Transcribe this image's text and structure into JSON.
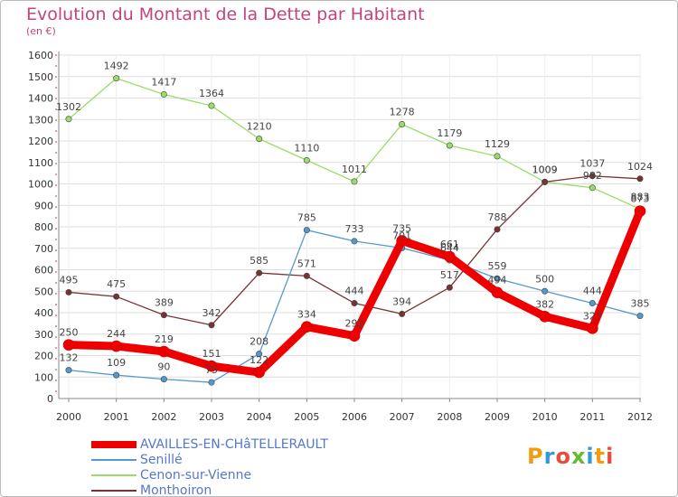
{
  "chart_data": {
    "type": "line",
    "title": "Evolution du Montant de la Dette par Habitant",
    "unit_label": "(en €)",
    "x": [
      2000,
      2001,
      2002,
      2003,
      2004,
      2005,
      2006,
      2007,
      2008,
      2009,
      2010,
      2011,
      2012
    ],
    "ylim": [
      0,
      1600
    ],
    "yticks": [
      0,
      100,
      200,
      300,
      400,
      500,
      600,
      700,
      800,
      900,
      1000,
      1100,
      1200,
      1300,
      1400,
      1500,
      1600
    ],
    "grid": true,
    "legend_position": "bottom-left",
    "series": [
      {
        "name": "AVAILLES-EN-CHâTELLERAULT",
        "color": "#ee0000",
        "values": [
          250,
          244,
          219,
          151,
          122,
          334,
          292,
          735,
          661,
          494,
          382,
          327,
          873
        ]
      },
      {
        "name": "Senillé",
        "color": "#5599cc",
        "values": [
          132,
          109,
          90,
          75,
          208,
          785,
          733,
          701,
          644,
          559,
          500,
          444,
          385
        ]
      },
      {
        "name": "Cenon-sur-Vienne",
        "color": "#99dd66",
        "values": [
          1302,
          1492,
          1417,
          1364,
          1210,
          1110,
          1011,
          1278,
          1179,
          1129,
          1009,
          982,
          883
        ]
      },
      {
        "name": "Monthoiron",
        "color": "#773333",
        "values": [
          495,
          475,
          389,
          342,
          585,
          571,
          444,
          394,
          517,
          788,
          1009,
          1037,
          1024
        ]
      }
    ]
  },
  "logo": {
    "text": "Proxiti",
    "letters": [
      "P",
      "r",
      "o",
      "x",
      "i",
      "t",
      "i"
    ],
    "colors": [
      "#f39c12",
      "#3399dd",
      "#e74c3c",
      "#66bb33",
      "#3399dd",
      "#f39c12",
      "#e74c3c"
    ]
  }
}
